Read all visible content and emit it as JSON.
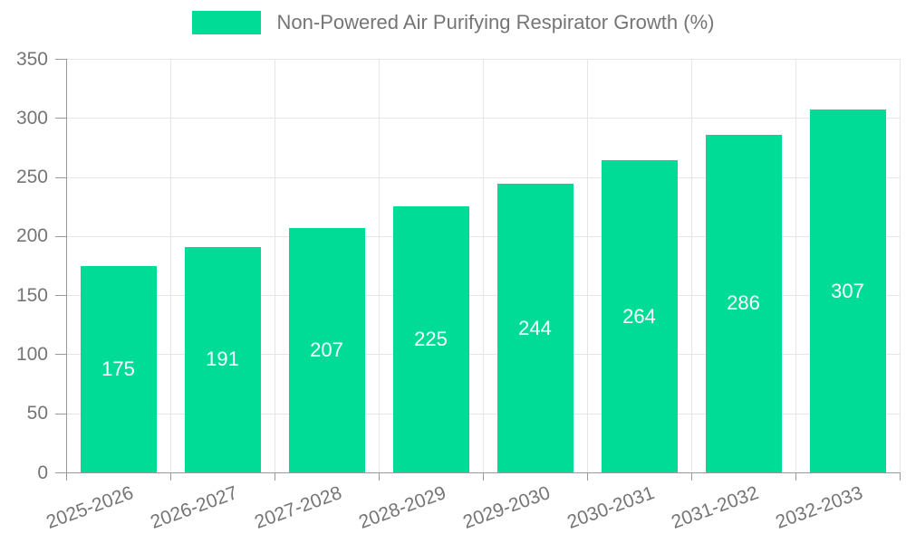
{
  "legend": {
    "label": "Non-Powered Air Purifying Respirator Growth (%)"
  },
  "chart_data": {
    "type": "bar",
    "title": "",
    "series_name": "Non-Powered Air Purifying Respirator Growth (%)",
    "categories": [
      "2025-2026",
      "2026-2027",
      "2027-2028",
      "2028-2029",
      "2029-2030",
      "2030-2031",
      "2031-2032",
      "2032-2033"
    ],
    "values": [
      175,
      191,
      207,
      225,
      244,
      264,
      286,
      307
    ],
    "value_labels": [
      "175",
      "191",
      "207",
      "225",
      "244",
      "264",
      "286",
      "307"
    ],
    "xlabel": "",
    "ylabel": "",
    "ylim": [
      0,
      350
    ],
    "yticks": [
      0,
      50,
      100,
      150,
      200,
      250,
      300,
      350
    ],
    "grid": true,
    "legend_position": "top-center",
    "colors": {
      "bar": "#00dc96",
      "value_label": "#ffffff",
      "axis_text": "#757575",
      "gridline": "#e6e6e6",
      "axis_line": "#999999",
      "background": "#ffffff"
    }
  }
}
